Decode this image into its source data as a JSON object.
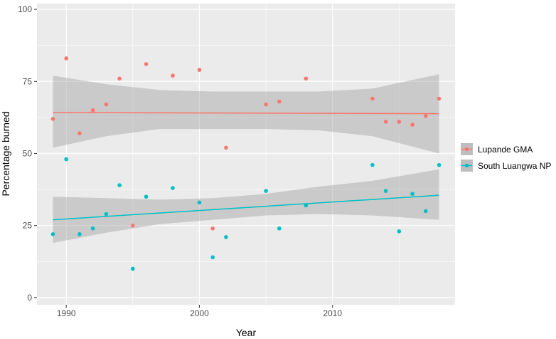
{
  "chart_data": {
    "type": "scatter",
    "xlabel": "Year",
    "ylabel": "Percentage burned",
    "xlim": [
      1987.8,
      2019.2
    ],
    "ylim": [
      -2.5,
      102
    ],
    "x_ticks": [
      1990,
      2000,
      2010
    ],
    "y_ticks": [
      0,
      25,
      50,
      75,
      100
    ],
    "x_tick_labels": [
      "1990",
      "2000",
      "2010"
    ],
    "y_tick_labels": [
      "0",
      "25",
      "50",
      "75",
      "100"
    ],
    "grid": true,
    "legend_position": "right",
    "colors": {
      "panel": "#ebebeb",
      "grid": "#ffffff",
      "band": "#bebebe"
    },
    "series": [
      {
        "name": "Lupande GMA",
        "color": "#f8766d",
        "points": [
          {
            "x": 1989,
            "y": 62
          },
          {
            "x": 1990,
            "y": 83
          },
          {
            "x": 1991,
            "y": 57
          },
          {
            "x": 1992,
            "y": 65
          },
          {
            "x": 1993,
            "y": 67
          },
          {
            "x": 1994,
            "y": 76
          },
          {
            "x": 1995,
            "y": 25
          },
          {
            "x": 1996,
            "y": 81
          },
          {
            "x": 1998,
            "y": 77
          },
          {
            "x": 2000,
            "y": 79
          },
          {
            "x": 2001,
            "y": 24
          },
          {
            "x": 2002,
            "y": 52
          },
          {
            "x": 2005,
            "y": 67
          },
          {
            "x": 2006,
            "y": 68
          },
          {
            "x": 2008,
            "y": 76
          },
          {
            "x": 2013,
            "y": 69
          },
          {
            "x": 2014,
            "y": 61
          },
          {
            "x": 2015,
            "y": 61
          },
          {
            "x": 2016,
            "y": 60
          },
          {
            "x": 2017,
            "y": 63
          },
          {
            "x": 2018,
            "y": 69
          }
        ],
        "trend": {
          "x": [
            1989,
            2018
          ],
          "y": [
            64.2,
            63.8
          ]
        },
        "band": {
          "x": [
            1989,
            1993,
            1997,
            2001,
            2005,
            2009,
            2013,
            2018
          ],
          "lower": [
            52,
            56,
            58.5,
            58.5,
            58.5,
            58,
            56,
            50
          ],
          "upper": [
            77,
            74,
            72,
            71.5,
            71.5,
            71.5,
            72.5,
            77.5
          ]
        }
      },
      {
        "name": "South Luangwa NP",
        "color": "#00bfc4",
        "points": [
          {
            "x": 1989,
            "y": 22
          },
          {
            "x": 1990,
            "y": 48
          },
          {
            "x": 1991,
            "y": 22
          },
          {
            "x": 1992,
            "y": 24
          },
          {
            "x": 1993,
            "y": 29
          },
          {
            "x": 1994,
            "y": 39
          },
          {
            "x": 1995,
            "y": 10
          },
          {
            "x": 1996,
            "y": 35
          },
          {
            "x": 1998,
            "y": 38
          },
          {
            "x": 2000,
            "y": 33
          },
          {
            "x": 2001,
            "y": 14
          },
          {
            "x": 2002,
            "y": 21
          },
          {
            "x": 2005,
            "y": 37
          },
          {
            "x": 2006,
            "y": 24
          },
          {
            "x": 2008,
            "y": 32
          },
          {
            "x": 2013,
            "y": 46
          },
          {
            "x": 2014,
            "y": 37
          },
          {
            "x": 2015,
            "y": 23
          },
          {
            "x": 2016,
            "y": 36
          },
          {
            "x": 2017,
            "y": 30
          },
          {
            "x": 2018,
            "y": 46
          }
        ],
        "trend": {
          "x": [
            1989,
            2018
          ],
          "y": [
            27,
            35.5
          ]
        },
        "band": {
          "x": [
            1989,
            1993,
            1997,
            2001,
            2005,
            2009,
            2013,
            2018
          ],
          "lower": [
            19,
            22.5,
            25.5,
            27,
            28.5,
            29,
            28.5,
            27
          ],
          "upper": [
            35,
            34.5,
            34,
            34.5,
            36,
            38.5,
            40.5,
            44.5
          ]
        }
      }
    ]
  }
}
